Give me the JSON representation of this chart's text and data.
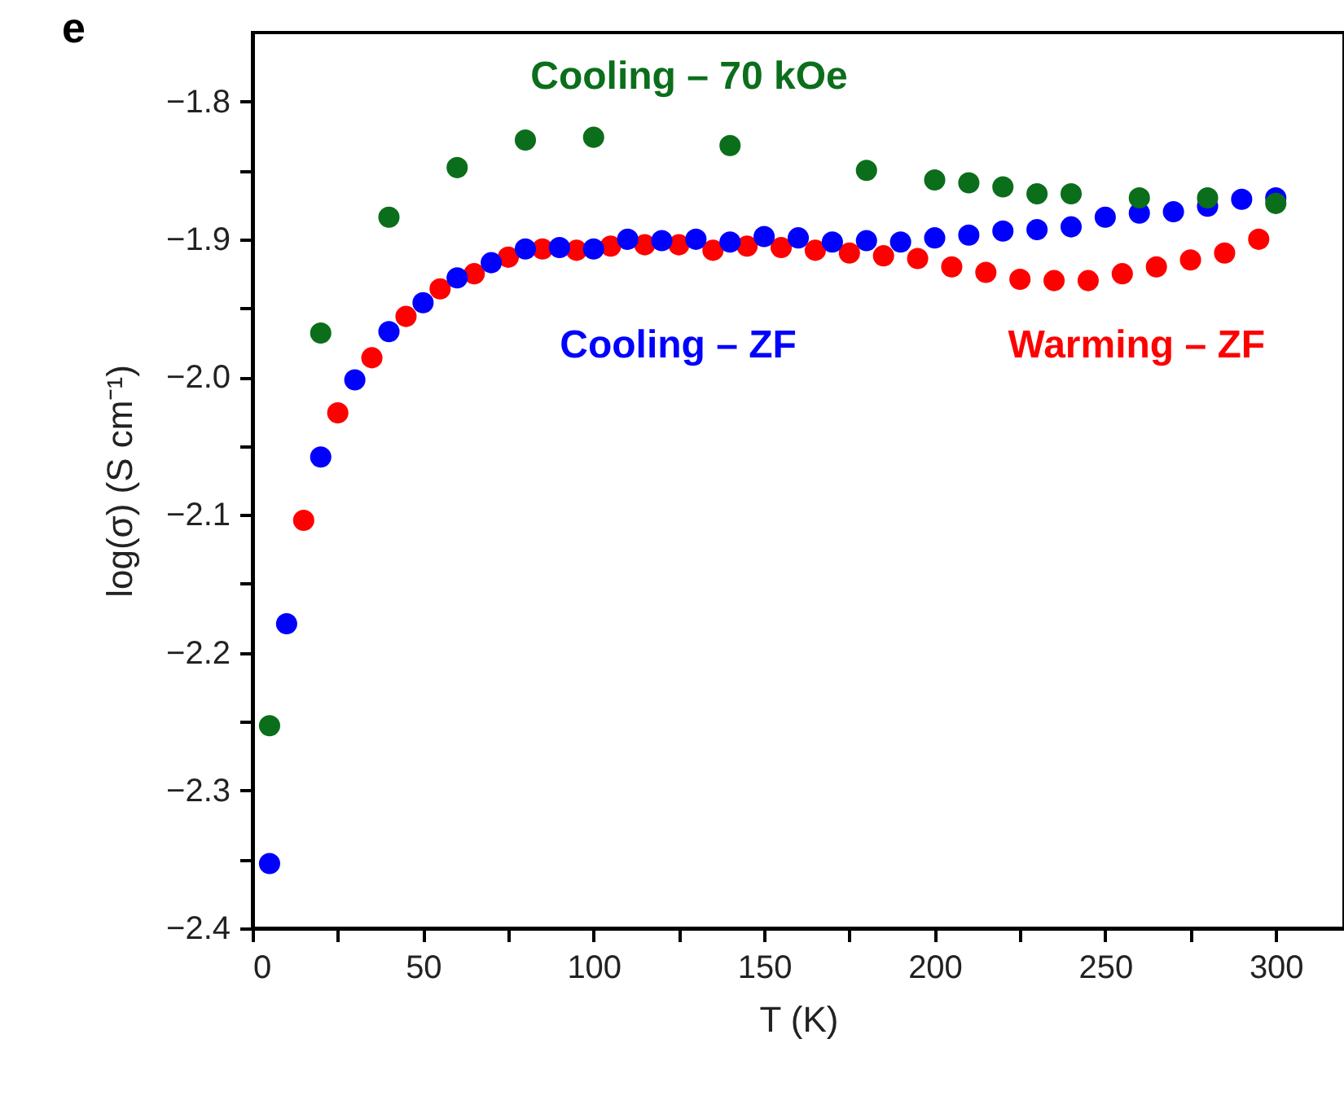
{
  "chart_data": {
    "type": "scatter",
    "xlabel": "T (K)",
    "ylabel": "log(σ) (S cm⁻¹)",
    "annotations": [
      "e"
    ],
    "xlim": [
      0,
      320
    ],
    "ylim": [
      -2.4,
      -1.75
    ],
    "xticks": [
      0,
      {
        "value": 25,
        "label": null
      },
      50,
      {
        "value": 75,
        "label": null
      },
      100,
      {
        "value": 125,
        "label": null
      },
      150,
      {
        "value": 175,
        "label": null
      },
      200,
      {
        "value": 225,
        "label": null
      },
      250,
      {
        "value": 275,
        "label": null
      },
      300
    ],
    "yticks": [
      {
        "value": -2.4,
        "label": "−2.4"
      },
      {
        "value": -2.35,
        "label": null
      },
      {
        "value": -2.3,
        "label": "−2.3"
      },
      {
        "value": -2.25,
        "label": null
      },
      {
        "value": -2.2,
        "label": "−2.2"
      },
      {
        "value": -2.15,
        "label": null
      },
      {
        "value": -2.1,
        "label": "−2.1"
      },
      {
        "value": -2.05,
        "label": null
      },
      {
        "value": -2.0,
        "label": "−2.0"
      },
      {
        "value": -1.95,
        "label": null
      },
      {
        "value": -1.9,
        "label": "−1.9"
      },
      {
        "value": -1.85,
        "label": null
      },
      {
        "value": -1.8,
        "label": "−1.8"
      }
    ],
    "grid": false,
    "legend": false,
    "marker": "circle",
    "series": [
      {
        "name": "Cooling – 70 kOe",
        "color": "#0b6e1b",
        "x": [
          5,
          20,
          40,
          60,
          80,
          100,
          140,
          180,
          200,
          210,
          220,
          230,
          240,
          260,
          280,
          300
        ],
        "values": [
          -2.253,
          -1.968,
          -1.884,
          -1.848,
          -1.828,
          -1.826,
          -1.832,
          -1.85,
          -1.857,
          -1.859,
          -1.862,
          -1.867,
          -1.867,
          -1.87,
          -1.87,
          -1.874
        ]
      },
      {
        "name": "Cooling – ZF",
        "color": "#0000ff",
        "x": [
          5,
          10,
          20,
          30,
          40,
          50,
          60,
          70,
          80,
          90,
          100,
          110,
          120,
          130,
          140,
          150,
          160,
          170,
          180,
          190,
          200,
          210,
          220,
          230,
          240,
          250,
          260,
          270,
          280,
          290,
          300
        ],
        "values": [
          -2.353,
          -2.179,
          -2.058,
          -2.002,
          -1.967,
          -1.946,
          -1.928,
          -1.917,
          -1.907,
          -1.906,
          -1.907,
          -1.9,
          -1.901,
          -1.9,
          -1.902,
          -1.898,
          -1.899,
          -1.902,
          -1.901,
          -1.902,
          -1.899,
          -1.897,
          -1.894,
          -1.893,
          -1.891,
          -1.884,
          -1.881,
          -1.88,
          -1.876,
          -1.871,
          -1.87
        ]
      },
      {
        "name": "Warming – ZF",
        "color": "#ff0000",
        "x": [
          15,
          25,
          35,
          45,
          55,
          65,
          75,
          85,
          95,
          105,
          115,
          125,
          135,
          145,
          155,
          165,
          175,
          185,
          195,
          205,
          215,
          225,
          235,
          245,
          255,
          265,
          275,
          285,
          295
        ],
        "values": [
          -2.104,
          -2.026,
          -1.986,
          -1.956,
          -1.936,
          -1.925,
          -1.913,
          -1.907,
          -1.908,
          -1.905,
          -1.904,
          -1.904,
          -1.908,
          -1.905,
          -1.906,
          -1.908,
          -1.91,
          -1.912,
          -1.914,
          -1.92,
          -1.924,
          -1.929,
          -1.93,
          -1.93,
          -1.925,
          -1.92,
          -1.915,
          -1.91,
          -1.9
        ]
      }
    ]
  }
}
